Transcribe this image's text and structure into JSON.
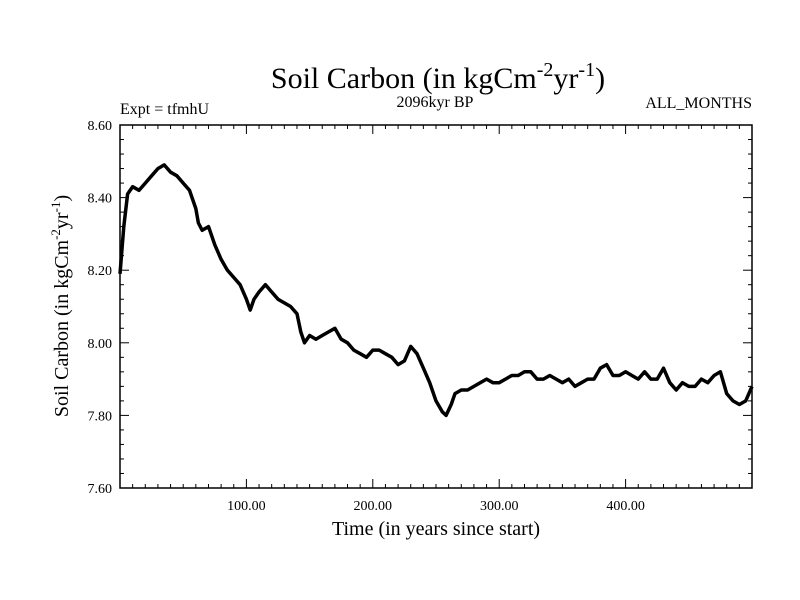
{
  "chart_data": {
    "type": "line",
    "title": "Soil Carbon (in kgCm",
    "title_sup1": "-2",
    "title_mid": "yr",
    "title_sup2": "-1",
    "title_end": ")",
    "expt_label": "Expt = tfmhU",
    "period_label": "2096kyr BP",
    "months_label": "ALL_MONTHS",
    "xlabel": "Time (in years since start)",
    "ylabel_main": "Soil Carbon (in kgCm",
    "ylabel_sup1": "-2",
    "ylabel_mid": "yr",
    "ylabel_sup2": "-1",
    "ylabel_end": ")",
    "xlim": [
      0,
      500
    ],
    "ylim": [
      7.6,
      8.6
    ],
    "x_ticks": [
      {
        "value": 100,
        "label": "100.00"
      },
      {
        "value": 200,
        "label": "200.00"
      },
      {
        "value": 300,
        "label": "300.00"
      },
      {
        "value": 400,
        "label": "400.00"
      }
    ],
    "y_ticks": [
      {
        "value": 7.6,
        "label": "7.60"
      },
      {
        "value": 7.8,
        "label": "7.80"
      },
      {
        "value": 8.0,
        "label": "8.00"
      },
      {
        "value": 8.2,
        "label": "8.20"
      },
      {
        "value": 8.4,
        "label": "8.40"
      },
      {
        "value": 8.6,
        "label": "8.60"
      }
    ],
    "series": [
      {
        "name": "Soil Carbon",
        "x": [
          0,
          3,
          6,
          10,
          15,
          20,
          25,
          30,
          35,
          40,
          45,
          50,
          55,
          60,
          62,
          65,
          70,
          75,
          80,
          85,
          90,
          95,
          100,
          103,
          106,
          110,
          115,
          120,
          125,
          130,
          135,
          140,
          143,
          146,
          150,
          155,
          160,
          165,
          170,
          175,
          180,
          185,
          190,
          195,
          200,
          205,
          210,
          215,
          220,
          225,
          230,
          235,
          240,
          245,
          250,
          255,
          258,
          262,
          265,
          270,
          275,
          280,
          285,
          290,
          295,
          300,
          305,
          310,
          315,
          320,
          325,
          330,
          335,
          340,
          345,
          350,
          355,
          360,
          365,
          370,
          375,
          380,
          385,
          390,
          395,
          400,
          405,
          410,
          415,
          420,
          425,
          430,
          435,
          440,
          445,
          450,
          455,
          460,
          465,
          470,
          475,
          480,
          485,
          490,
          495,
          500
        ],
        "y": [
          8.19,
          8.32,
          8.41,
          8.43,
          8.42,
          8.44,
          8.46,
          8.48,
          8.49,
          8.47,
          8.46,
          8.44,
          8.42,
          8.37,
          8.33,
          8.31,
          8.32,
          8.27,
          8.23,
          8.2,
          8.18,
          8.16,
          8.12,
          8.09,
          8.12,
          8.14,
          8.16,
          8.14,
          8.12,
          8.11,
          8.1,
          8.08,
          8.03,
          8.0,
          8.02,
          8.01,
          8.02,
          8.03,
          8.04,
          8.01,
          8.0,
          7.98,
          7.97,
          7.96,
          7.98,
          7.98,
          7.97,
          7.96,
          7.94,
          7.95,
          7.99,
          7.97,
          7.93,
          7.89,
          7.84,
          7.81,
          7.8,
          7.83,
          7.86,
          7.87,
          7.87,
          7.88,
          7.89,
          7.9,
          7.89,
          7.89,
          7.9,
          7.91,
          7.91,
          7.92,
          7.92,
          7.9,
          7.9,
          7.91,
          7.9,
          7.89,
          7.9,
          7.88,
          7.89,
          7.9,
          7.9,
          7.93,
          7.94,
          7.91,
          7.91,
          7.92,
          7.91,
          7.9,
          7.92,
          7.9,
          7.9,
          7.93,
          7.89,
          7.87,
          7.89,
          7.88,
          7.88,
          7.9,
          7.89,
          7.91,
          7.92,
          7.86,
          7.84,
          7.83,
          7.84,
          7.88
        ]
      }
    ]
  }
}
